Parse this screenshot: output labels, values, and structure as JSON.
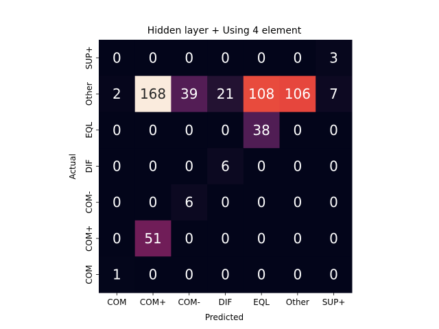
{
  "chart_data": {
    "type": "heatmap",
    "title": "Hidden layer + Using 4 element",
    "xlabel": "Predicted",
    "ylabel": "Actual",
    "x_categories": [
      "COM",
      "COM+",
      "COM-",
      "DIF",
      "EQL",
      "Other",
      "SUP+"
    ],
    "y_categories_top_to_bottom": [
      "SUP+",
      "Other",
      "EQL",
      "DIF",
      "COM-",
      "COM+",
      "COM"
    ],
    "values": [
      [
        0,
        0,
        0,
        0,
        0,
        0,
        3
      ],
      [
        2,
        168,
        39,
        21,
        108,
        106,
        7
      ],
      [
        0,
        0,
        0,
        0,
        38,
        0,
        0
      ],
      [
        0,
        0,
        0,
        6,
        0,
        0,
        0
      ],
      [
        0,
        0,
        6,
        0,
        0,
        0,
        0
      ],
      [
        0,
        51,
        0,
        0,
        0,
        0,
        0
      ],
      [
        1,
        0,
        0,
        0,
        0,
        0,
        0
      ]
    ],
    "colormap": "rocket",
    "colorbar": false,
    "grid": false,
    "vmin": 0,
    "vmax": 168
  }
}
